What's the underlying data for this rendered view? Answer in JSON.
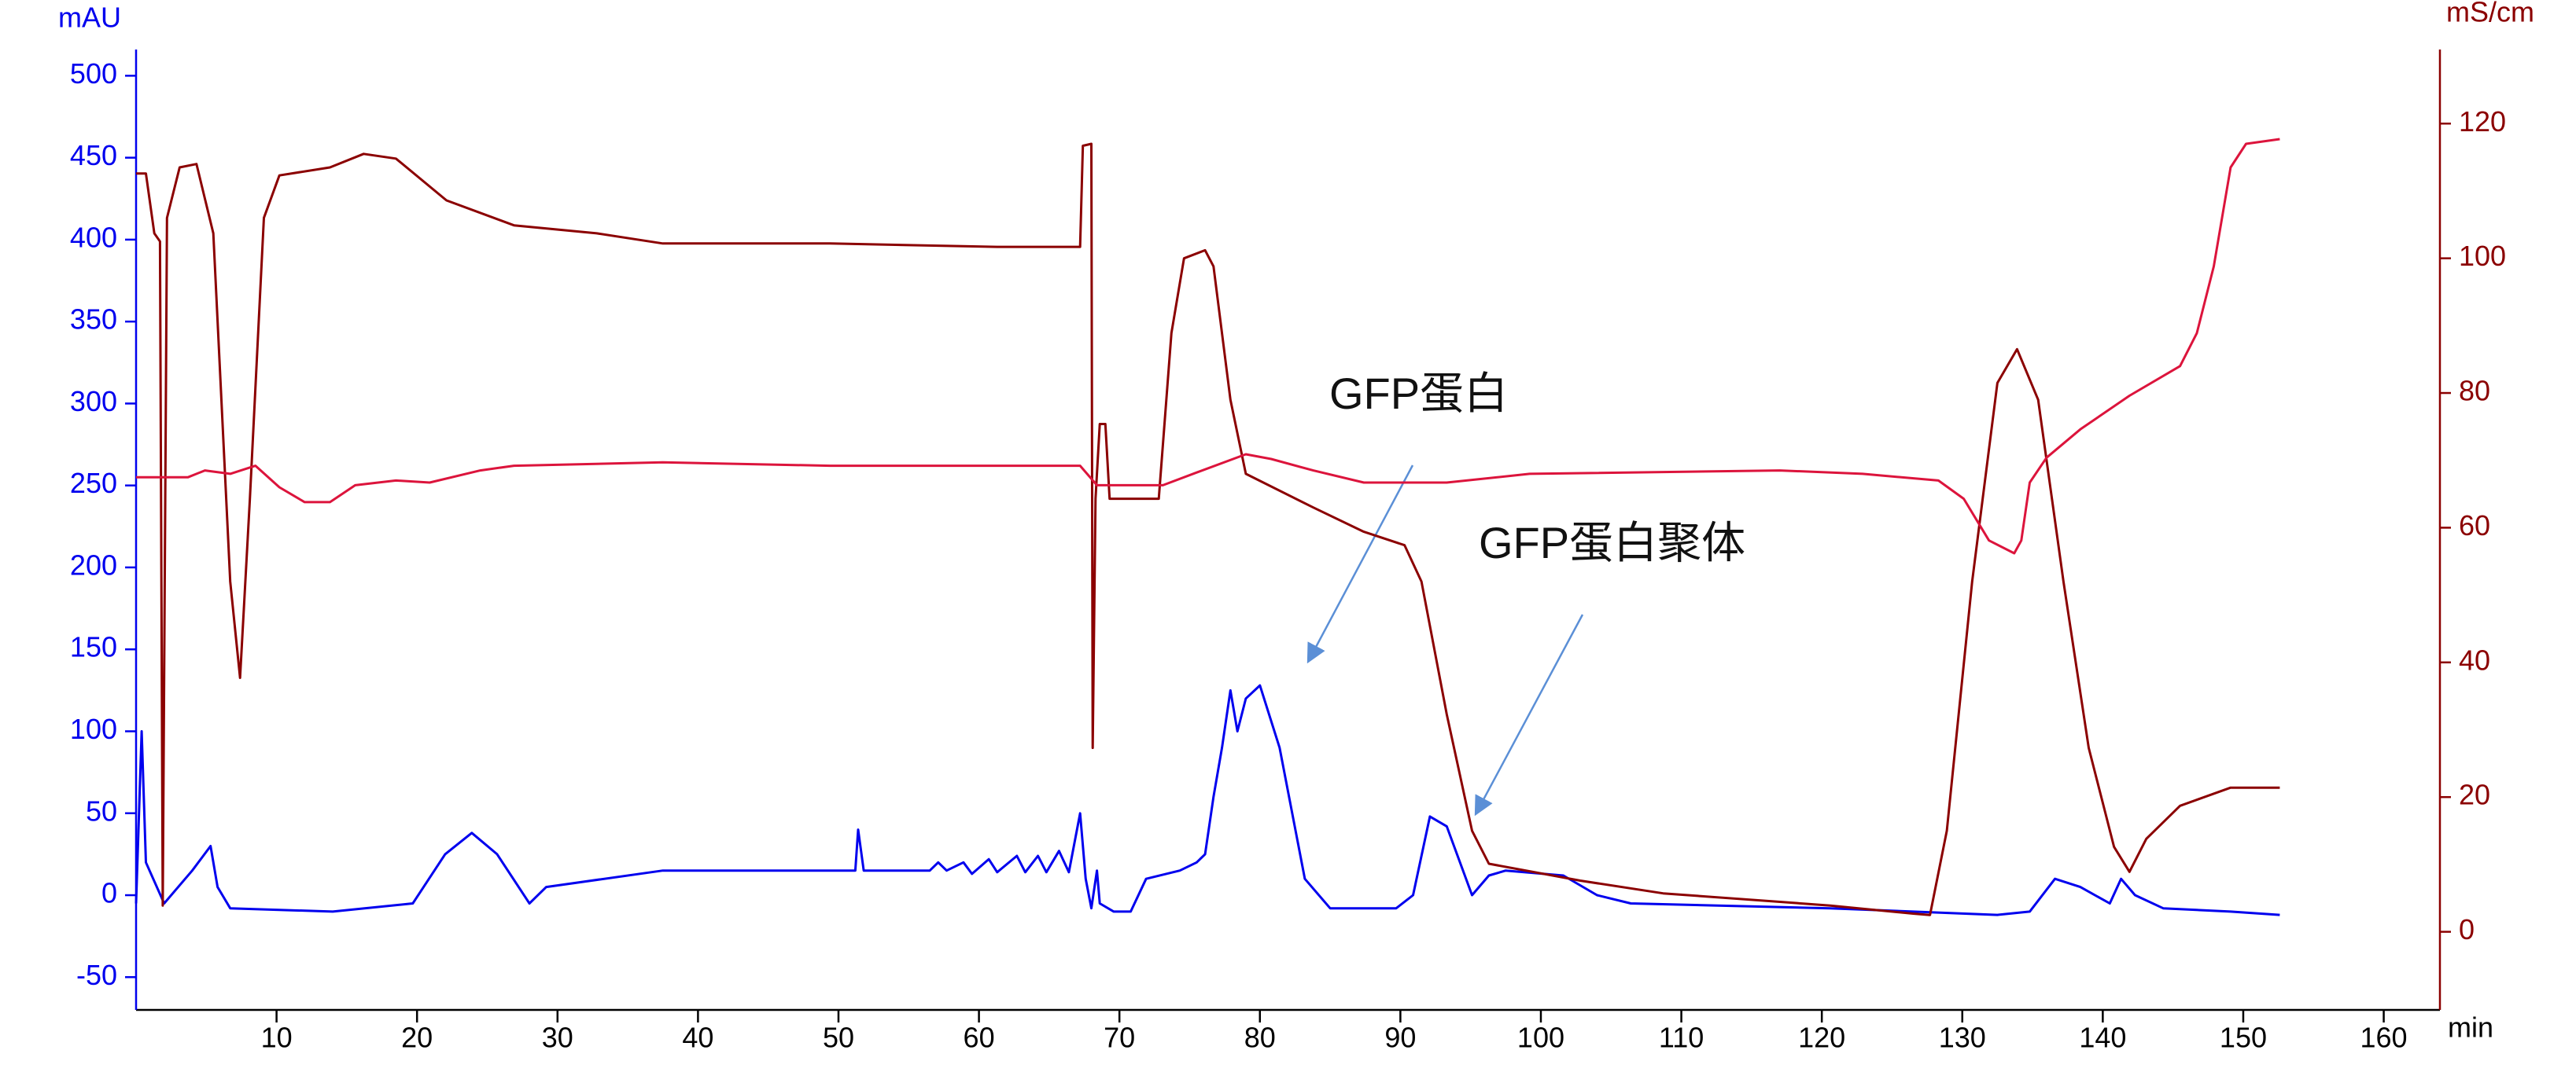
{
  "chart_data": {
    "type": "line",
    "y_label": "mAU",
    "y2_label": "mS/cm",
    "x_label": "min",
    "annotations": [
      "GFP蛋白",
      "GFP蛋白聚体"
    ],
    "xlim": [
      0,
      164
    ],
    "xticks": [
      10,
      20,
      30,
      40,
      50,
      60,
      70,
      80,
      90,
      100,
      110,
      120,
      130,
      140,
      150,
      160
    ],
    "ylim": [
      -70,
      516
    ],
    "yticks": [
      -50,
      0,
      50,
      100,
      150,
      200,
      250,
      300,
      350,
      400,
      450,
      500
    ],
    "y2lim": [
      -11.6,
      131
    ],
    "y2ticks": [
      0,
      20,
      40,
      60,
      80,
      100,
      120
    ],
    "series": [
      {
        "color": "#0000ee",
        "axis": "y",
        "x": [
          0,
          0.4,
          0.7,
          2,
          4,
          5.3,
          5.8,
          6.7,
          14,
          19.7,
          22,
          23.9,
          25.7,
          28,
          29.2,
          37.5,
          51.2,
          51.4,
          51.8,
          56.5,
          57.1,
          57.7,
          58.9,
          59.5,
          60.7,
          61.3,
          62.7,
          63.3,
          64.2,
          64.8,
          65.7,
          66.4,
          67.2,
          67.6,
          68,
          68.4,
          68.6,
          69.6,
          70.8,
          71.9,
          74.3,
          75.5,
          76.1,
          76.7,
          77.3,
          77.9,
          78.4,
          79,
          80,
          81.4,
          83.2,
          85,
          89.7,
          90.9,
          92.1,
          93.3,
          95.1,
          96.3,
          97.5,
          101.6,
          104,
          106.4,
          120.6,
          132.5,
          134.8,
          136.6,
          138.4,
          140.5,
          141.3,
          142.3,
          144.3,
          149.1,
          152.6
        ],
        "values": [
          -5,
          100,
          20,
          -5,
          15,
          30,
          5,
          -8,
          -10,
          -5,
          25,
          38,
          25,
          -5,
          5,
          15,
          15,
          40,
          15,
          15,
          20,
          15,
          20,
          13,
          22,
          14,
          24,
          14,
          24,
          14,
          27,
          14,
          50,
          10,
          -8,
          15,
          -5,
          -10,
          -10,
          10,
          15,
          20,
          25,
          60,
          90,
          125,
          100,
          120,
          128,
          90,
          10,
          -8,
          -8,
          0,
          48,
          42,
          0,
          12,
          15,
          12,
          0,
          -5,
          -8,
          -12,
          -10,
          10,
          5,
          -5,
          10,
          0,
          -8,
          -10,
          -12
        ]
      },
      {
        "color": "#8b0000",
        "axis": "y2",
        "x": [
          0,
          0.7,
          1.3,
          1.7,
          1.9,
          2.2,
          3.1,
          4.3,
          5.5,
          6.7,
          7.4,
          8.1,
          9.1,
          10.2,
          13.8,
          16.2,
          18.5,
          22.1,
          26.9,
          32.8,
          37.5,
          49.4,
          61.3,
          67.2,
          67.4,
          68,
          68.1,
          68.3,
          68.6,
          69,
          69.3,
          69.6,
          72.8,
          73.7,
          74.6,
          76.1,
          76.7,
          77.9,
          79,
          83.8,
          87.4,
          90.3,
          91.5,
          93.3,
          95.1,
          96.3,
          102.8,
          108.7,
          120.6,
          126.5,
          127.7,
          128.9,
          130.7,
          132.5,
          133.9,
          135.4,
          137.2,
          139,
          140.8,
          141.9,
          143.1,
          145.5,
          149.1,
          152.6
        ],
        "values": [
          112.6,
          112.6,
          103.7,
          102.5,
          3.9,
          106,
          113.5,
          114,
          103.7,
          52,
          37.7,
          64.3,
          106,
          112.3,
          113.5,
          115.5,
          114.8,
          108.6,
          104.9,
          103.7,
          102.2,
          102.2,
          101.7,
          101.7,
          116.7,
          117,
          27.3,
          64.3,
          75.4,
          75.4,
          64.3,
          64.3,
          64.3,
          88.9,
          100,
          101.2,
          98.8,
          79,
          68,
          63,
          59.4,
          57.4,
          52,
          32.3,
          15,
          10.1,
          7.6,
          5.7,
          3.9,
          2.7,
          2.5,
          15,
          52,
          81.5,
          86.5,
          79,
          52,
          27.3,
          12.6,
          8.9,
          13.8,
          18.7,
          21.4,
          21.4
        ]
      },
      {
        "color": "#dc143c",
        "axis": "y2",
        "x": [
          0,
          3.7,
          4.9,
          6.7,
          8.5,
          10.2,
          12,
          13.8,
          15.6,
          18.5,
          20.9,
          24.5,
          26.9,
          37.5,
          49.4,
          67.2,
          68.4,
          73.1,
          75.5,
          79,
          80.8,
          83.8,
          87.4,
          93.3,
          99.2,
          117,
          122.9,
          128.3,
          130.1,
          131.9,
          133.7,
          134.2,
          134.8,
          136,
          138.4,
          141.9,
          145.5,
          146.7,
          147.9,
          149.1,
          150.2,
          152.6
        ],
        "values": [
          67.5,
          67.5,
          68.5,
          68,
          69.2,
          66,
          63.8,
          63.8,
          66.3,
          67,
          66.7,
          68.5,
          69.2,
          69.7,
          69.2,
          69.2,
          66.3,
          66.3,
          68.2,
          70.9,
          70.2,
          68.5,
          66.7,
          66.7,
          68,
          68.5,
          68,
          67,
          64.3,
          58.1,
          56.2,
          58.1,
          66.7,
          70.4,
          74.6,
          79.6,
          84,
          88.9,
          98.8,
          113.5,
          117,
          117.7
        ]
      }
    ]
  }
}
